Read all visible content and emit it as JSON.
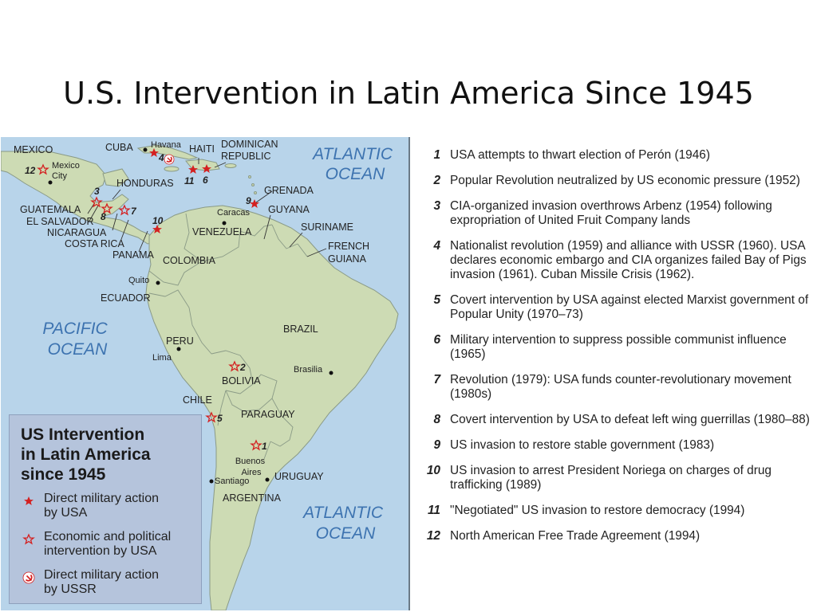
{
  "slide": {
    "title": "U.S. Intervention in Latin America Since 1945"
  },
  "map": {
    "countries": {
      "mexico": "MEXICO",
      "cuba": "CUBA",
      "haiti": "HAITI",
      "dominican_republic": "DOMINICAN\nREPUBLIC",
      "honduras": "HONDURAS",
      "guatemala": "GUATEMALA",
      "el_salvador": "EL SALVADOR",
      "nicaragua": "NICARAGUA",
      "costa_rica": "COSTA RICA",
      "panama": "PANAMA",
      "grenada": "GRENADA",
      "guyana": "GUYANA",
      "venezuela": "VENEZUELA",
      "suriname": "SURINAME",
      "french_guiana": "FRENCH\nGUIANA",
      "colombia": "COLOMBIA",
      "ecuador": "ECUADOR",
      "peru": "PERU",
      "brazil": "BRAZIL",
      "bolivia": "BOLIVIA",
      "chile": "CHILE",
      "paraguay": "PARAGUAY",
      "uruguay": "URUGUAY",
      "argentina": "ARGENTINA"
    },
    "cities": {
      "mexico_city": "Mexico\nCity",
      "havana": "Havana",
      "caracas": "Caracas",
      "quito": "Quito",
      "lima": "Lima",
      "brasilia": "Brasilia",
      "buenos_aires": "Buenos\nAires",
      "santiago": "Santiago"
    },
    "oceans": {
      "atlantic_north": "ATLANTIC\nOCEAN",
      "pacific": "PACIFIC\nOCEAN",
      "atlantic_south": "ATLANTIC\nOCEAN"
    },
    "markers": {
      "m1": "1",
      "m2": "2",
      "m3": "3",
      "m4": "4",
      "m5": "5",
      "m6": "6",
      "m7": "7",
      "m8": "8",
      "m9": "9",
      "m10": "10",
      "m11": "11",
      "m12": "12"
    },
    "colors": {
      "ocean": "#b8d4ea",
      "land": "#cddbb4",
      "land_stroke": "#8a9a86",
      "marker": "#d42020",
      "legend_bg": "#b5c4dc"
    }
  },
  "legend": {
    "title": "US Intervention\nin Latin America\nsince 1945",
    "items": [
      {
        "icon": "filled-star-icon",
        "label": "Direct military action\nby USA"
      },
      {
        "icon": "outline-star-icon",
        "label": "Economic and political\nintervention by USA"
      },
      {
        "icon": "hammer-sickle-icon",
        "label": "Direct military action\nby USSR"
      }
    ]
  },
  "events": [
    {
      "num": "1",
      "text": "USA attempts to thwart election of Perón (1946)"
    },
    {
      "num": "2",
      "text": "Popular Revolution neutralized by US economic pressure (1952)"
    },
    {
      "num": "3",
      "text": "CIA-organized invasion overthrows Arbenz (1954) following expropriation of United Fruit Company lands"
    },
    {
      "num": "4",
      "text": "Nationalist revolution (1959) and alliance with USSR (1960). USA declares economic embargo and CIA organizes failed Bay of Pigs invasion (1961). Cuban Missile Crisis (1962)."
    },
    {
      "num": "5",
      "text": "Covert intervention by USA against elected Marxist government of Popular Unity (1970–73)"
    },
    {
      "num": "6",
      "text": "Military intervention to suppress possible communist influence (1965)"
    },
    {
      "num": "7",
      "text": "Revolution (1979): USA funds counter-revolutionary movement (1980s)"
    },
    {
      "num": "8",
      "text": "Covert intervention by USA to defeat left wing guerrillas (1980–88)"
    },
    {
      "num": "9",
      "text": "US invasion to restore stable government (1983)"
    },
    {
      "num": "10",
      "text": "US invasion to arrest President Noriega on charges of drug trafficking (1989)"
    },
    {
      "num": "11",
      "text": "\"Negotiated\" US invasion to restore democracy (1994)"
    },
    {
      "num": "12",
      "text": "North American Free Trade Agreement (1994)"
    }
  ]
}
